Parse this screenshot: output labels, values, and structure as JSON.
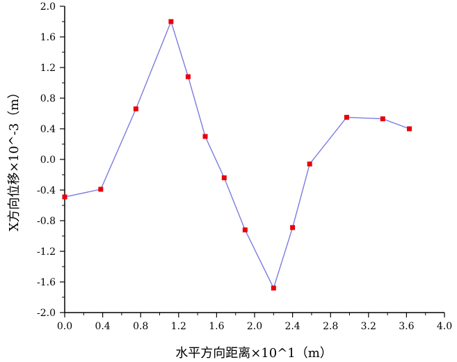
{
  "chart_data": {
    "type": "line",
    "title": "",
    "xlabel": "水平方向距离×10^1（m）",
    "ylabel": "X方向位移×10^-3（m）",
    "xlim": [
      0.0,
      4.0
    ],
    "ylim": [
      -2.0,
      2.0
    ],
    "xticks": [
      "0.0",
      "0.4",
      "0.8",
      "1.2",
      "1.6",
      "2.0",
      "2.4",
      "2.8",
      "3.2",
      "3.6",
      "4.0"
    ],
    "yticks": [
      "-2.0",
      "-1.6",
      "-1.2",
      "-0.8",
      "-0.4",
      "0.0",
      "0.4",
      "0.8",
      "1.2",
      "1.6",
      "2.0"
    ],
    "grid": false,
    "legend": "none",
    "series": [
      {
        "x": [
          0.0,
          0.38,
          0.75,
          1.12,
          1.3,
          1.48,
          1.68,
          1.9,
          2.2,
          2.4,
          2.58,
          2.97,
          3.35,
          3.63
        ],
        "y": [
          -0.49,
          -0.39,
          0.66,
          1.8,
          1.08,
          0.3,
          -0.24,
          -0.92,
          -1.68,
          -0.89,
          -0.06,
          0.55,
          0.53,
          0.4
        ],
        "line_color": "#7b7be0",
        "marker_color": "#e8000b",
        "marker": "square"
      }
    ]
  }
}
